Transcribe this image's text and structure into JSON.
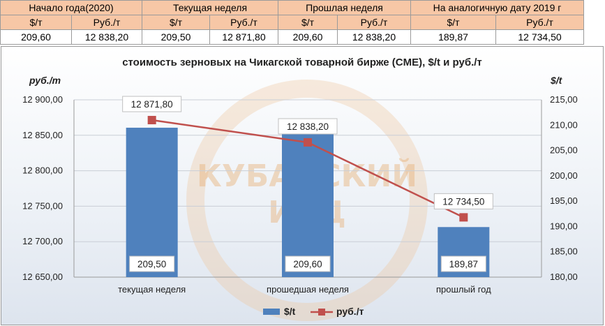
{
  "table": {
    "headers": [
      "Начало года(2020)",
      "Текущая неделя",
      "Прошлая неделя",
      "На аналогичную дату 2019 г"
    ],
    "units": [
      "$/т",
      "Руб./т",
      "$/т",
      "Руб./т",
      "$/т",
      "Руб./т",
      "$/т",
      "Руб./т"
    ],
    "values": [
      "209,60",
      "12 838,20",
      "209,50",
      "12 871,80",
      "209,60",
      "12 838,20",
      "189,87",
      "12 734,50"
    ]
  },
  "watermark": {
    "line1": "КУБАНСКИЙ",
    "line2": "ИАЦ"
  },
  "chart_data": {
    "type": "bar+line",
    "title": "стоимость зерновых на Чикагской товарной бирже (CME), $/t и руб./т",
    "left_axis_unit": "руб./т",
    "right_axis_unit": "$/t",
    "categories": [
      "текущая неделя",
      "прошедшая неделя",
      "прошлый год"
    ],
    "left_ticks": [
      "12 650,00",
      "12 700,00",
      "12 750,00",
      "12 800,00",
      "12 850,00",
      "12 900,00"
    ],
    "right_ticks": [
      "180,00",
      "185,00",
      "190,00",
      "195,00",
      "200,00",
      "205,00",
      "210,00",
      "215,00"
    ],
    "left_ylim": [
      12650,
      12900
    ],
    "right_ylim": [
      180,
      215
    ],
    "series": [
      {
        "name": "$/t",
        "kind": "bar",
        "axis": "left",
        "color": "#4f81bd",
        "values": [
          12860.7,
          12862.4,
          12720.6
        ],
        "labels": [
          "209,50",
          "209,60",
          "189,87"
        ]
      },
      {
        "name": "руб./т",
        "kind": "line",
        "axis": "right",
        "color": "#c0504d",
        "values": [
          211.0,
          206.6,
          191.8
        ],
        "labels": [
          "12 871,80",
          "12 838,20",
          "12 734,50"
        ]
      }
    ],
    "grid": true,
    "legend_position": "bottom"
  }
}
